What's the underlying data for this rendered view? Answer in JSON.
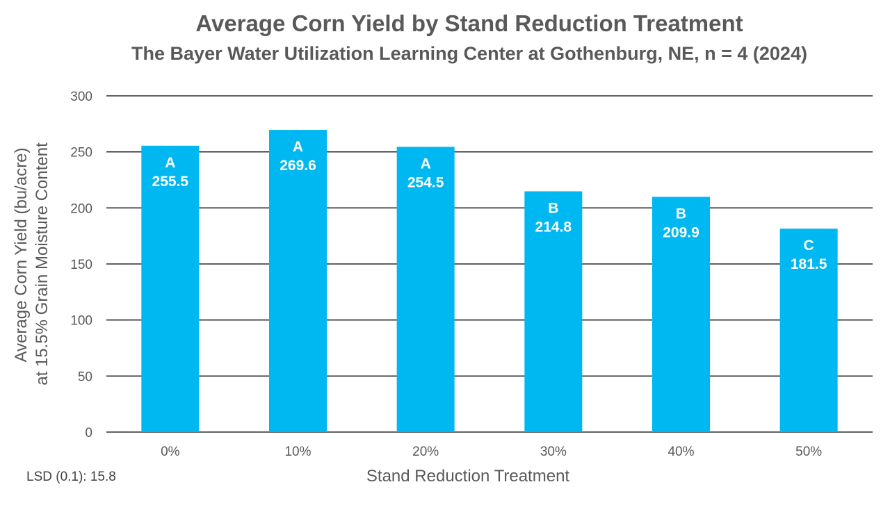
{
  "chart_data": {
    "type": "bar",
    "title": "Average Corn Yield by Stand Reduction Treatment",
    "subtitle": "The Bayer Water Utilization Learning Center at Gothenburg, NE, n = 4 (2024)",
    "xlabel": "Stand Reduction Treatment",
    "ylabel_line1": "Average Corn Yield (bu/acre)",
    "ylabel_line2": "at  15.5% Grain Moisture Content",
    "categories": [
      "0%",
      "10%",
      "20%",
      "30%",
      "40%",
      "50%"
    ],
    "values": [
      255.5,
      269.6,
      254.5,
      214.8,
      209.9,
      181.5
    ],
    "value_labels": [
      "255.5",
      "269.6",
      "254.5",
      "214.8",
      "209.9",
      "181.5"
    ],
    "letters": [
      "A",
      "A",
      "A",
      "B",
      "B",
      "C"
    ],
    "ylim": [
      0,
      300
    ],
    "yticks": [
      0,
      50,
      100,
      150,
      200,
      250,
      300
    ],
    "grid": true,
    "bar_color": "#00B8F1",
    "grid_color": "#000000",
    "footnote": "LSD (0.1): 15.8"
  }
}
